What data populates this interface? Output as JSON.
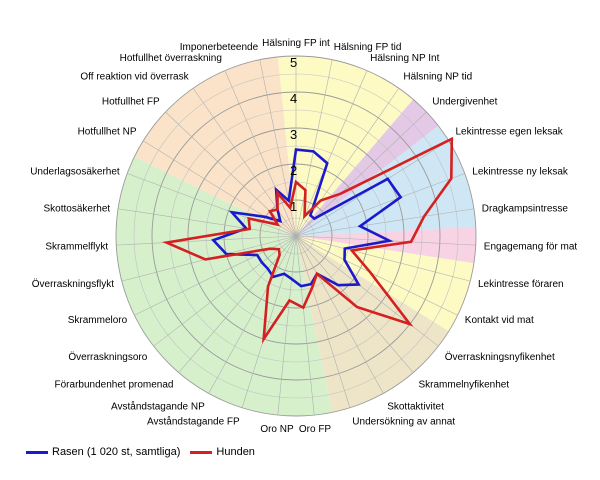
{
  "chart_data": {
    "type": "radar",
    "title": "",
    "categories": [
      "Hälsning FP int",
      "Hälsning FP tid",
      "Hälsning NP Int",
      "Hälsning NP tid",
      "Undergivenhet",
      "Lekintresse egen leksak",
      "Lekintresse ny leksak",
      "Dragkampsintresse",
      "Engagemang för mat",
      "Lekintresse föraren",
      "Kontakt vid mat",
      "Överraskningsnyfikenhet",
      "Skrammelnyfikenhet",
      "Skottaktivitet",
      "Undersökning av annat",
      "Oro FP",
      "Oro NP",
      "Avståndstagande FP",
      "Avståndstagande NP",
      "Förarbundenhet promenad",
      "Överraskningsoro",
      "Skrammeloro",
      "Överraskningsflykt",
      "Skrammelflykt",
      "Skottosäkerhet",
      "Underlagsosäkerhet",
      "Hotfullhet NP",
      "Hotfullhet FP",
      "Off reaktion vid överrask",
      "Hotfullhet överraskning",
      "Imponerbeteende"
    ],
    "rlim": [
      0,
      5
    ],
    "ticks": [
      "1",
      "2",
      "3",
      "4",
      "5"
    ],
    "grid": true,
    "series": [
      {
        "name": "Rasen (1 020 st, samtliga)",
        "color": "#1a1acc",
        "values": [
          2.4,
          2.4,
          2.2,
          0.7,
          0.7,
          3.0,
          3.1,
          1.8,
          2.6,
          1.4,
          1.5,
          2.2,
          1.8,
          1.2,
          1.4,
          1.4,
          1.2,
          1.1,
          1.3,
          1.2,
          1.2,
          1.2,
          2.0,
          2.3,
          1.4,
          1.9,
          1.0,
          0.6,
          0.9,
          1.4,
          1.0
        ]
      },
      {
        "name": "Hunden",
        "color": "#d42020",
        "values": [
          1.5,
          1.3,
          0.6,
          1.2,
          1.7,
          5.1,
          4.6,
          3.6,
          3.2,
          1.6,
          2.3,
          4.0,
          2.6,
          1.2,
          1.5,
          2.0,
          1.8,
          3.0,
          1.6,
          0.7,
          0.6,
          0.8,
          2.6,
          3.6,
          1.3,
          1.4,
          0.6,
          1.0,
          0.9,
          1.3,
          0.8
        ]
      }
    ],
    "sectors": [
      {
        "from": "Hälsning FP int",
        "to": "Hälsning NP tid",
        "color": "#fdfac4"
      },
      {
        "from": "Undergivenhet",
        "to": "Undergivenhet",
        "color": "#e3c9e5"
      },
      {
        "from": "Lekintresse egen leksak",
        "to": "Dragkampsintresse",
        "color": "#cfe6f4"
      },
      {
        "from": "Engagemang för mat",
        "to": "Engagemang för mat",
        "color": "#f7d3e3"
      },
      {
        "from": "Lekintresse föraren",
        "to": "Kontakt vid mat",
        "color": "#fdfac4"
      },
      {
        "from": "Överraskningsnyfikenhet",
        "to": "Undersökning av annat",
        "color": "#eee5c8"
      },
      {
        "from": "Oro FP",
        "to": "Underlagsosäkerhet",
        "color": "#d6f0cc"
      },
      {
        "from": "Hotfullhet NP",
        "to": "Imponerbeteende",
        "color": "#fae3c8"
      }
    ],
    "legend": "bottom-left"
  }
}
